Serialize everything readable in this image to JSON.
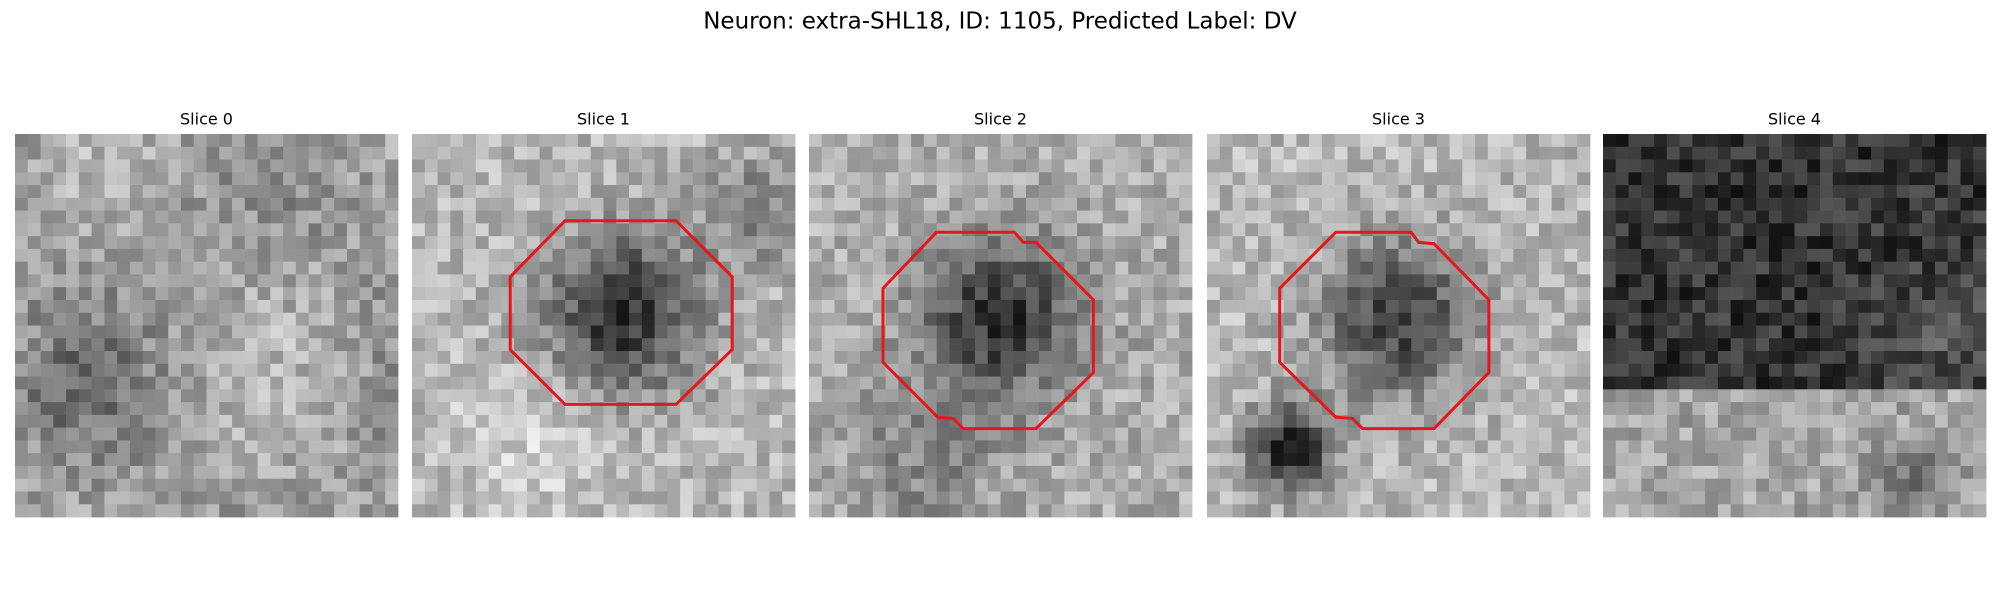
{
  "title": "Neuron: extra-SHL18, ID: 1105, Predicted Label: DV",
  "panels": [
    {
      "title": "Slice 0"
    },
    {
      "title": "Slice 1"
    },
    {
      "title": "Slice 2"
    },
    {
      "title": "Slice 3"
    },
    {
      "title": "Slice 4"
    }
  ]
}
